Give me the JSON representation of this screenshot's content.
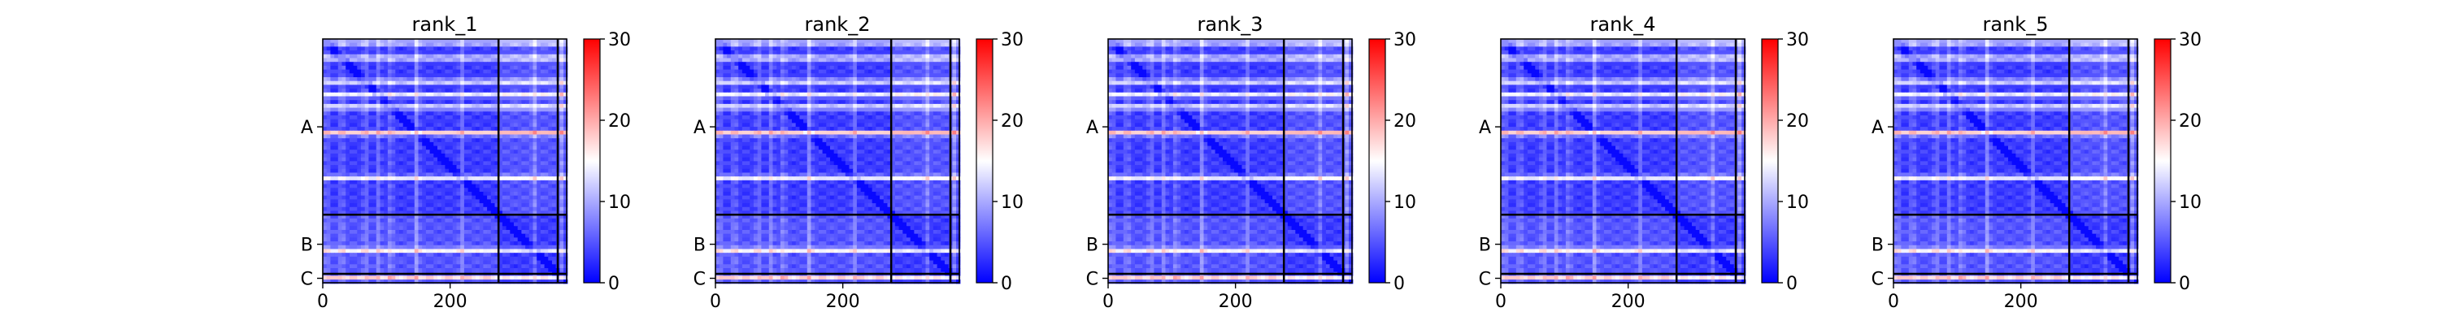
{
  "chart_data": [
    {
      "type": "heatmap",
      "title": "rank_1",
      "x_ticks": [
        0,
        200
      ],
      "x_range": [
        0,
        383
      ],
      "y_tick_labels": [
        "A",
        "B",
        "C"
      ],
      "chain_boundaries": [
        276,
        369
      ],
      "colorbar": {
        "ticks": [
          0,
          10,
          20,
          30
        ],
        "range": [
          0,
          30
        ],
        "colormap": [
          "#0000ff",
          "#ffffff",
          "#ff0000"
        ]
      },
      "bright_rows": [
        6,
        30,
        67,
        88,
        107,
        148,
        218,
        332,
        375
      ],
      "base_level": 5,
      "grid": false
    },
    {
      "type": "heatmap",
      "title": "rank_2",
      "x_ticks": [
        0,
        200
      ],
      "x_range": [
        0,
        383
      ],
      "y_tick_labels": [
        "A",
        "B",
        "C"
      ],
      "chain_boundaries": [
        276,
        369
      ],
      "colorbar": {
        "ticks": [
          0,
          10,
          20,
          30
        ],
        "range": [
          0,
          30
        ],
        "colormap": [
          "#0000ff",
          "#ffffff",
          "#ff0000"
        ]
      },
      "bright_rows": [
        6,
        30,
        67,
        88,
        107,
        148,
        218,
        332,
        375
      ],
      "base_level": 5,
      "grid": false
    },
    {
      "type": "heatmap",
      "title": "rank_3",
      "x_ticks": [
        0,
        200
      ],
      "x_range": [
        0,
        383
      ],
      "y_tick_labels": [
        "A",
        "B",
        "C"
      ],
      "chain_boundaries": [
        276,
        369
      ],
      "colorbar": {
        "ticks": [
          0,
          10,
          20,
          30
        ],
        "range": [
          0,
          30
        ],
        "colormap": [
          "#0000ff",
          "#ffffff",
          "#ff0000"
        ]
      },
      "bright_rows": [
        6,
        30,
        67,
        88,
        107,
        148,
        218,
        332,
        375
      ],
      "base_level": 5,
      "grid": false
    },
    {
      "type": "heatmap",
      "title": "rank_4",
      "x_ticks": [
        0,
        200
      ],
      "x_range": [
        0,
        383
      ],
      "y_tick_labels": [
        "A",
        "B",
        "C"
      ],
      "chain_boundaries": [
        276,
        369
      ],
      "colorbar": {
        "ticks": [
          0,
          10,
          20,
          30
        ],
        "range": [
          0,
          30
        ],
        "colormap": [
          "#0000ff",
          "#ffffff",
          "#ff0000"
        ]
      },
      "bright_rows": [
        6,
        30,
        67,
        88,
        107,
        148,
        218,
        332,
        375
      ],
      "base_level": 5,
      "grid": false
    },
    {
      "type": "heatmap",
      "title": "rank_5",
      "x_ticks": [
        0,
        200
      ],
      "x_range": [
        0,
        383
      ],
      "y_tick_labels": [
        "A",
        "B",
        "C"
      ],
      "chain_boundaries": [
        276,
        369
      ],
      "colorbar": {
        "ticks": [
          0,
          10,
          20,
          30
        ],
        "range": [
          0,
          30
        ],
        "colormap": [
          "#0000ff",
          "#ffffff",
          "#ff0000"
        ]
      },
      "bright_rows": [
        6,
        30,
        67,
        88,
        107,
        148,
        218,
        332,
        375
      ],
      "base_level": 5,
      "grid": false
    }
  ]
}
